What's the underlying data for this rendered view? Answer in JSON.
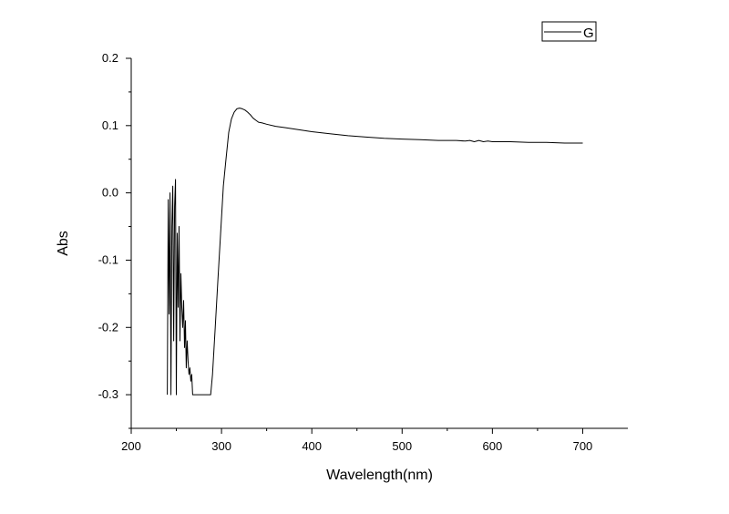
{
  "chart_data": {
    "type": "line",
    "xlabel": "Wavelength(nm)",
    "ylabel": "Abs",
    "xlim": [
      200,
      750
    ],
    "ylim": [
      -0.35,
      0.2
    ],
    "x_ticks": [
      200,
      300,
      400,
      500,
      600,
      700
    ],
    "x_tick_labels": [
      "200",
      "300",
      "400",
      "500",
      "600",
      "700"
    ],
    "y_ticks": [
      -0.3,
      -0.2,
      -0.1,
      0.0,
      0.1,
      0.2
    ],
    "y_tick_labels": [
      "-0.3",
      "-0.2",
      "-0.1",
      "0.0",
      "0.1",
      "0.2"
    ],
    "grid": false,
    "legend_position": "top-right",
    "series": [
      {
        "name": "G",
        "color": "#000000",
        "x": [
          240,
          241,
          242,
          243,
          244,
          245,
          246,
          247,
          248,
          249,
          250,
          251,
          252,
          253,
          254,
          255,
          256,
          257,
          258,
          259,
          260,
          261,
          262,
          263,
          264,
          265,
          266,
          267,
          268,
          270,
          275,
          280,
          285,
          288,
          290,
          293,
          296,
          299,
          302,
          305,
          308,
          311,
          314,
          317,
          320,
          323,
          326,
          329,
          332,
          335,
          338,
          341,
          345,
          350,
          360,
          370,
          380,
          390,
          400,
          420,
          440,
          460,
          480,
          500,
          520,
          540,
          560,
          570,
          575,
          580,
          585,
          590,
          595,
          600,
          620,
          640,
          660,
          680,
          700
        ],
        "y": [
          -0.3,
          -0.01,
          -0.18,
          0.0,
          -0.3,
          -0.05,
          0.01,
          -0.22,
          -0.02,
          0.02,
          -0.3,
          -0.06,
          -0.17,
          -0.05,
          -0.22,
          -0.12,
          -0.17,
          -0.2,
          -0.16,
          -0.23,
          -0.19,
          -0.26,
          -0.22,
          -0.25,
          -0.27,
          -0.26,
          -0.28,
          -0.27,
          -0.3,
          -0.3,
          -0.3,
          -0.3,
          -0.3,
          -0.3,
          -0.27,
          -0.2,
          -0.13,
          -0.06,
          0.01,
          0.05,
          0.09,
          0.11,
          0.12,
          0.125,
          0.126,
          0.125,
          0.123,
          0.12,
          0.116,
          0.111,
          0.108,
          0.105,
          0.104,
          0.102,
          0.099,
          0.097,
          0.095,
          0.093,
          0.091,
          0.088,
          0.085,
          0.083,
          0.081,
          0.08,
          0.079,
          0.078,
          0.078,
          0.077,
          0.078,
          0.076,
          0.078,
          0.076,
          0.077,
          0.076,
          0.076,
          0.075,
          0.075,
          0.074,
          0.074
        ]
      }
    ]
  }
}
